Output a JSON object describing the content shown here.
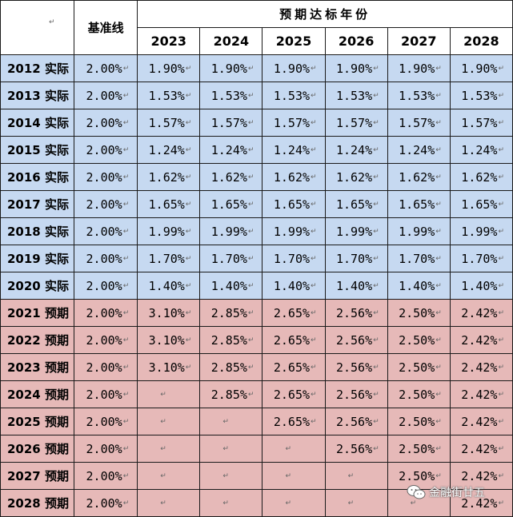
{
  "header": {
    "baseline_label": "基准线",
    "span_title": "预期达标年份",
    "years": [
      "2023",
      "2024",
      "2025",
      "2026",
      "2027",
      "2028"
    ],
    "return_mark": "↵"
  },
  "rows": [
    {
      "label": "2012 实际",
      "kind": "actual",
      "baseline": "2.00%",
      "values": [
        "1.90%",
        "1.90%",
        "1.90%",
        "1.90%",
        "1.90%",
        "1.90%"
      ]
    },
    {
      "label": "2013 实际",
      "kind": "actual",
      "baseline": "2.00%",
      "values": [
        "1.53%",
        "1.53%",
        "1.53%",
        "1.53%",
        "1.53%",
        "1.53%"
      ]
    },
    {
      "label": "2014 实际",
      "kind": "actual",
      "baseline": "2.00%",
      "values": [
        "1.57%",
        "1.57%",
        "1.57%",
        "1.57%",
        "1.57%",
        "1.57%"
      ]
    },
    {
      "label": "2015 实际",
      "kind": "actual",
      "baseline": "2.00%",
      "values": [
        "1.24%",
        "1.24%",
        "1.24%",
        "1.24%",
        "1.24%",
        "1.24%"
      ]
    },
    {
      "label": "2016 实际",
      "kind": "actual",
      "baseline": "2.00%",
      "values": [
        "1.62%",
        "1.62%",
        "1.62%",
        "1.62%",
        "1.62%",
        "1.62%"
      ]
    },
    {
      "label": "2017 实际",
      "kind": "actual",
      "baseline": "2.00%",
      "values": [
        "1.65%",
        "1.65%",
        "1.65%",
        "1.65%",
        "1.65%",
        "1.65%"
      ]
    },
    {
      "label": "2018 实际",
      "kind": "actual",
      "baseline": "2.00%",
      "values": [
        "1.99%",
        "1.99%",
        "1.99%",
        "1.99%",
        "1.99%",
        "1.99%"
      ]
    },
    {
      "label": "2019 实际",
      "kind": "actual",
      "baseline": "2.00%",
      "values": [
        "1.70%",
        "1.70%",
        "1.70%",
        "1.70%",
        "1.70%",
        "1.70%"
      ]
    },
    {
      "label": "2020 实际",
      "kind": "actual",
      "baseline": "2.00%",
      "values": [
        "1.40%",
        "1.40%",
        "1.40%",
        "1.40%",
        "1.40%",
        "1.40%"
      ]
    },
    {
      "label": "2021 预期",
      "kind": "forecast",
      "baseline": "2.00%",
      "values": [
        "3.10%",
        "2.85%",
        "2.65%",
        "2.56%",
        "2.50%",
        "2.42%"
      ]
    },
    {
      "label": "2022 预期",
      "kind": "forecast",
      "baseline": "2.00%",
      "values": [
        "3.10%",
        "2.85%",
        "2.65%",
        "2.56%",
        "2.50%",
        "2.42%"
      ]
    },
    {
      "label": "2023 预期",
      "kind": "forecast",
      "baseline": "2.00%",
      "values": [
        "3.10%",
        "2.85%",
        "2.65%",
        "2.56%",
        "2.50%",
        "2.42%"
      ]
    },
    {
      "label": "2024 预期",
      "kind": "forecast",
      "baseline": "2.00%",
      "values": [
        "",
        "2.85%",
        "2.65%",
        "2.56%",
        "2.50%",
        "2.42%"
      ]
    },
    {
      "label": "2025 预期",
      "kind": "forecast",
      "baseline": "2.00%",
      "values": [
        "",
        "",
        "2.65%",
        "2.56%",
        "2.50%",
        "2.42%"
      ]
    },
    {
      "label": "2026 预期",
      "kind": "forecast",
      "baseline": "2.00%",
      "values": [
        "",
        "",
        "",
        "2.56%",
        "2.50%",
        "2.42%"
      ]
    },
    {
      "label": "2027 预期",
      "kind": "forecast",
      "baseline": "2.00%",
      "values": [
        "",
        "",
        "",
        "",
        "2.50%",
        "2.42%"
      ]
    },
    {
      "label": "2028 预期",
      "kind": "forecast",
      "baseline": "2.00%",
      "values": [
        "",
        "",
        "",
        "",
        "",
        "2.42%"
      ]
    }
  ],
  "watermark": {
    "text": "金融街廿五",
    "icon": "wechat-icon"
  },
  "colors": {
    "actual_fill": "#c6d9f1",
    "forecast_fill": "#e6b9b8",
    "border": "#1a1a1a"
  }
}
